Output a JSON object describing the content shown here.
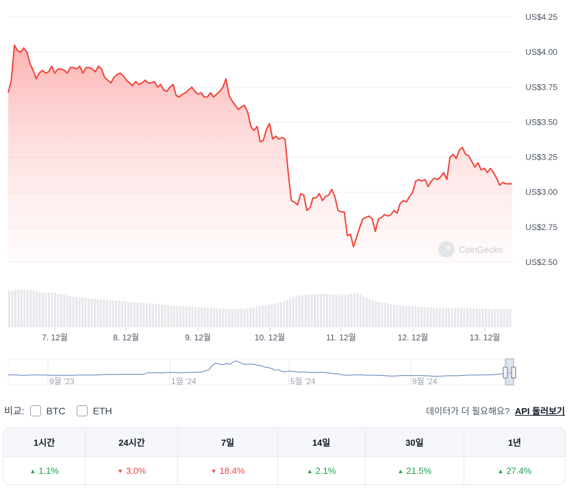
{
  "chart_data": {
    "type": "area",
    "y_axis": {
      "ticks": [
        "US$4.25",
        "US$4.00",
        "US$3.75",
        "US$3.50",
        "US$3.25",
        "US$3.00",
        "US$2.75",
        "US$2.50"
      ],
      "range": [
        2.5,
        4.25
      ]
    },
    "x_axis": {
      "ticks": [
        "7. 12월",
        "8. 12월",
        "9. 12월",
        "10. 12월",
        "11. 12월",
        "12. 12월",
        "13. 12월"
      ]
    },
    "price": [
      3.71,
      3.8,
      4.05,
      4.01,
      4.0,
      4.03,
      4.0,
      3.92,
      3.87,
      3.81,
      3.85,
      3.87,
      3.85,
      3.86,
      3.9,
      3.85,
      3.88,
      3.88,
      3.87,
      3.85,
      3.89,
      3.89,
      3.88,
      3.9,
      3.85,
      3.89,
      3.89,
      3.88,
      3.86,
      3.9,
      3.88,
      3.82,
      3.8,
      3.78,
      3.82,
      3.84,
      3.85,
      3.83,
      3.8,
      3.78,
      3.76,
      3.79,
      3.77,
      3.78,
      3.8,
      3.78,
      3.78,
      3.79,
      3.75,
      3.77,
      3.73,
      3.72,
      3.75,
      3.77,
      3.69,
      3.68,
      3.7,
      3.71,
      3.73,
      3.75,
      3.72,
      3.7,
      3.71,
      3.68,
      3.68,
      3.71,
      3.68,
      3.7,
      3.72,
      3.75,
      3.81,
      3.69,
      3.65,
      3.62,
      3.59,
      3.61,
      3.62,
      3.57,
      3.47,
      3.44,
      3.47,
      3.36,
      3.37,
      3.45,
      3.49,
      3.38,
      3.4,
      3.38,
      3.39,
      3.38,
      3.14,
      2.94,
      2.93,
      2.91,
      2.99,
      2.98,
      2.87,
      2.89,
      2.96,
      2.96,
      2.99,
      2.94,
      2.97,
      2.98,
      3.02,
      2.97,
      2.87,
      2.86,
      2.86,
      2.69,
      2.7,
      2.61,
      2.68,
      2.75,
      2.81,
      2.82,
      2.83,
      2.81,
      2.72,
      2.81,
      2.82,
      2.84,
      2.83,
      2.84,
      2.87,
      2.85,
      2.92,
      2.94,
      2.93,
      2.97,
      3.0,
      3.08,
      3.09,
      3.08,
      3.09,
      3.04,
      3.08,
      3.1,
      3.09,
      3.11,
      3.14,
      3.09,
      3.25,
      3.27,
      3.24,
      3.3,
      3.32,
      3.27,
      3.26,
      3.22,
      3.18,
      3.21,
      3.16,
      3.17,
      3.14,
      3.17,
      3.14,
      3.1,
      3.05,
      3.07,
      3.06,
      3.06,
      3.06
    ],
    "volume": [
      0.92,
      0.93,
      0.95,
      0.95,
      0.95,
      0.94,
      0.94,
      0.93,
      0.93,
      0.91,
      0.89,
      0.88,
      0.87,
      0.87,
      0.88,
      0.87,
      0.85,
      0.84,
      0.82,
      0.8,
      0.78,
      0.77,
      0.76,
      0.75,
      0.75,
      0.74,
      0.73,
      0.72,
      0.72,
      0.71,
      0.7,
      0.7,
      0.69,
      0.68,
      0.68,
      0.67,
      0.67,
      0.66,
      0.66,
      0.65,
      0.64,
      0.64,
      0.63,
      0.62,
      0.62,
      0.61,
      0.6,
      0.6,
      0.59,
      0.58,
      0.57,
      0.56,
      0.56,
      0.55,
      0.55,
      0.54,
      0.54,
      0.53,
      0.53,
      0.52,
      0.52,
      0.51,
      0.51,
      0.5,
      0.5,
      0.49,
      0.49,
      0.48,
      0.48,
      0.47,
      0.47,
      0.46,
      0.46,
      0.46,
      0.46,
      0.46,
      0.47,
      0.47,
      0.48,
      0.49,
      0.5,
      0.52,
      0.53,
      0.55,
      0.56,
      0.58,
      0.59,
      0.61,
      0.62,
      0.64,
      0.66,
      0.69,
      0.72,
      0.76,
      0.78,
      0.8,
      0.81,
      0.82,
      0.83,
      0.84,
      0.84,
      0.85,
      0.85,
      0.85,
      0.84,
      0.84,
      0.83,
      0.82,
      0.82,
      0.82,
      0.83,
      0.84,
      0.86,
      0.86,
      0.85,
      0.82,
      0.78,
      0.74,
      0.71,
      0.68,
      0.66,
      0.64,
      0.62,
      0.61,
      0.6,
      0.58,
      0.57,
      0.56,
      0.55,
      0.55,
      0.54,
      0.54,
      0.53,
      0.52,
      0.51,
      0.51,
      0.5,
      0.5,
      0.5,
      0.49,
      0.49,
      0.49,
      0.49,
      0.49,
      0.48,
      0.48,
      0.48,
      0.48,
      0.48,
      0.48,
      0.48,
      0.48,
      0.47,
      0.47,
      0.47,
      0.47,
      0.47,
      0.46,
      0.46,
      0.46,
      0.46,
      0.46,
      0.46,
      0.46,
      0.46
    ],
    "overview": [
      0.36,
      0.37,
      0.36,
      0.35,
      0.34,
      0.34,
      0.35,
      0.35,
      0.36,
      0.36,
      0.35,
      0.35,
      0.34,
      0.34,
      0.34,
      0.34,
      0.34,
      0.34,
      0.34,
      0.34,
      0.35,
      0.35,
      0.35,
      0.35,
      0.35,
      0.36,
      0.36,
      0.37,
      0.38,
      0.38,
      0.38,
      0.38,
      0.38,
      0.39,
      0.38,
      0.39,
      0.38,
      0.39,
      0.38,
      0.38,
      0.45,
      0.46,
      0.46,
      0.46,
      0.45,
      0.46,
      0.47,
      0.48,
      0.47,
      0.46,
      0.45,
      0.47,
      0.47,
      0.48,
      0.48,
      0.49,
      0.49,
      0.55,
      0.6,
      0.8,
      0.9,
      0.85,
      0.82,
      0.88,
      0.85,
      0.95,
      1.0,
      0.92,
      0.86,
      0.84,
      0.86,
      0.84,
      0.8,
      0.78,
      0.72,
      0.7,
      0.66,
      0.58,
      0.6,
      0.52,
      0.5,
      0.54,
      0.52,
      0.51,
      0.48,
      0.5,
      0.49,
      0.48,
      0.47,
      0.48,
      0.47,
      0.48,
      0.46,
      0.44,
      0.42,
      0.42,
      0.38,
      0.35,
      0.34,
      0.35,
      0.36,
      0.37,
      0.36,
      0.35,
      0.34,
      0.35,
      0.34,
      0.34,
      0.33,
      0.32,
      0.31,
      0.31,
      0.31,
      0.32,
      0.33,
      0.33,
      0.33,
      0.32,
      0.33,
      0.33,
      0.32,
      0.32,
      0.31,
      0.3,
      0.3,
      0.31,
      0.31,
      0.32,
      0.32,
      0.32,
      0.32,
      0.33,
      0.34,
      0.35,
      0.35,
      0.35,
      0.36,
      0.36,
      0.36,
      0.37,
      0.37,
      0.38,
      0.4,
      0.42,
      0.44,
      0.45,
      0.5
    ],
    "overview_ticks": [
      "9월 '23",
      "1월 '24",
      "5월 '24",
      "9월 '24"
    ],
    "colors": {
      "line": "#f04438",
      "fill_top": "#fca5a5",
      "volume": "#e5e7eb",
      "overview": "#5b7bb2"
    }
  },
  "watermark": "CoinGecko",
  "compare": {
    "label": "비교:",
    "options": [
      {
        "key": "btc",
        "label": "BTC"
      },
      {
        "key": "eth",
        "label": "ETH"
      }
    ]
  },
  "api": {
    "prompt": "데이터가 더 필요해요?",
    "link": "API 둘러보기"
  },
  "performance": [
    {
      "period": "1시간",
      "value": "1.1%",
      "dir": "up"
    },
    {
      "period": "24시간",
      "value": "3.0%",
      "dir": "down"
    },
    {
      "period": "7일",
      "value": "18.4%",
      "dir": "down"
    },
    {
      "period": "14일",
      "value": "2.1%",
      "dir": "up"
    },
    {
      "period": "30일",
      "value": "21.5%",
      "dir": "up"
    },
    {
      "period": "1년",
      "value": "27.4%",
      "dir": "up"
    }
  ]
}
